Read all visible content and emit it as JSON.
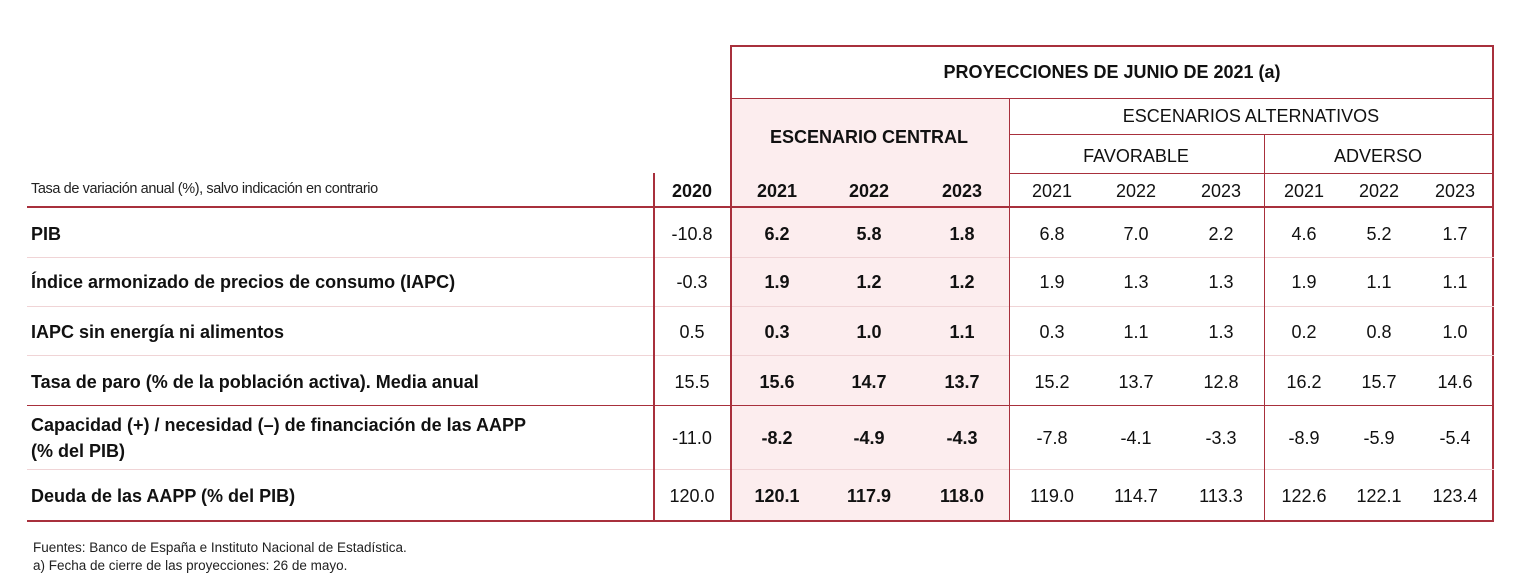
{
  "table": {
    "title": "PROYECCIONES DE JUNIO DE 2021 (a)",
    "central": "ESCENARIO CENTRAL",
    "alternatives": "ESCENARIOS ALTERNATIVOS",
    "favorable": "FAVORABLE",
    "adverse": "ADVERSO",
    "subtitle": "Tasa de variación anual (%), salvo indicación en contrario",
    "years": [
      "2020",
      "2021",
      "2022",
      "2023",
      "2021",
      "2022",
      "2023",
      "2021",
      "2022",
      "2023"
    ],
    "rows": [
      {
        "label": "PIB",
        "values": [
          "-10.8",
          "6.2",
          "5.8",
          "1.8",
          "6.8",
          "7.0",
          "2.2",
          "4.6",
          "5.2",
          "1.7"
        ]
      },
      {
        "label": "Índice armonizado de precios de consumo (IAPC)",
        "values": [
          "-0.3",
          "1.9",
          "1.2",
          "1.2",
          "1.9",
          "1.3",
          "1.3",
          "1.9",
          "1.1",
          "1.1"
        ]
      },
      {
        "label": "IAPC sin energía ni alimentos",
        "values": [
          "0.5",
          "0.3",
          "1.0",
          "1.1",
          "0.3",
          "1.1",
          "1.3",
          "0.2",
          "0.8",
          "1.0"
        ]
      },
      {
        "label": "Tasa de paro (% de la población activa). Media anual",
        "values": [
          "15.5",
          "15.6",
          "14.7",
          "13.7",
          "15.2",
          "13.7",
          "12.8",
          "16.2",
          "15.7",
          "14.6"
        ]
      },
      {
        "label": "Capacidad (+) / necesidad (–) de financiación de las AAPP",
        "label2": "(% del PIB)",
        "values": [
          "-11.0",
          "-8.2",
          "-4.9",
          "-4.3",
          "-7.8",
          "-4.1",
          "-3.3",
          "-8.9",
          "-5.9",
          "-5.4"
        ]
      },
      {
        "label": "Deuda de las AAPP (% del PIB)",
        "values": [
          "120.0",
          "120.1",
          "117.9",
          "118.0",
          "119.0",
          "114.7",
          "113.3",
          "122.6",
          "122.1",
          "123.4"
        ]
      }
    ]
  },
  "footnotes": {
    "sources": "Fuentes: Banco de España e Instituto Nacional de Estadística.",
    "note_a": "a) Fecha de cierre de las proyecciones: 26 de mayo."
  }
}
